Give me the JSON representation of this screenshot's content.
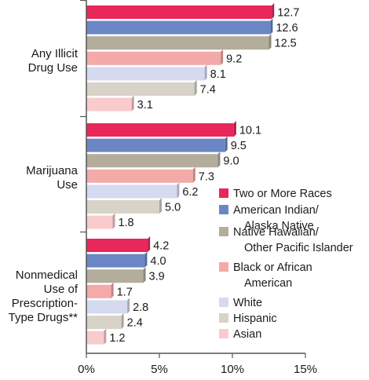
{
  "chart_data": {
    "type": "bar",
    "orientation": "horizontal",
    "categories": [
      [
        "Any Illicit",
        "Drug Use"
      ],
      [
        "Marijuana",
        "Use"
      ],
      [
        "Nonmedical",
        "Use of",
        "Prescription-",
        "Type Drugs**"
      ]
    ],
    "series": [
      {
        "name": [
          "Two or More Races"
        ],
        "color": "#e8275a",
        "values": [
          12.7,
          10.1,
          4.2
        ],
        "labels": [
          "12.7",
          "10.1",
          "4.2"
        ]
      },
      {
        "name": [
          "American Indian/",
          "Alaska Native"
        ],
        "color": "#6b86c4",
        "values": [
          12.6,
          9.5,
          4.0
        ],
        "labels": [
          "12.6",
          "9.5",
          "4.0"
        ]
      },
      {
        "name": [
          "Native Hawaiian/",
          "Other Pacific Islander"
        ],
        "color": "#b4ad9c",
        "values": [
          12.5,
          9.0,
          3.9
        ],
        "labels": [
          "12.5",
          "9.0",
          "3.9"
        ]
      },
      {
        "name": [
          "Black or African",
          "American"
        ],
        "color": "#f4aaa9",
        "values": [
          9.2,
          7.3,
          1.7
        ],
        "labels": [
          "9.2",
          "7.3",
          "1.7"
        ]
      },
      {
        "name": [
          "White"
        ],
        "color": "#d6daf0",
        "values": [
          8.1,
          6.2,
          2.8
        ],
        "labels": [
          "8.1",
          "6.2",
          "2.8"
        ]
      },
      {
        "name": [
          "Hispanic"
        ],
        "color": "#d8d3c9",
        "values": [
          7.4,
          5.0,
          2.4
        ],
        "labels": [
          "7.4",
          "5.0",
          "2.4"
        ]
      },
      {
        "name": [
          "Asian"
        ],
        "color": "#f9cbcc",
        "values": [
          3.1,
          1.8,
          1.2
        ],
        "labels": [
          "3.1",
          "1.8",
          "1.2"
        ]
      }
    ],
    "xlim": [
      0,
      15
    ],
    "xticks": [
      0,
      5,
      10,
      15
    ],
    "xtick_labels": [
      "0%",
      "5%",
      "10%",
      "15%"
    ],
    "legend_position": "right",
    "grid": false
  }
}
